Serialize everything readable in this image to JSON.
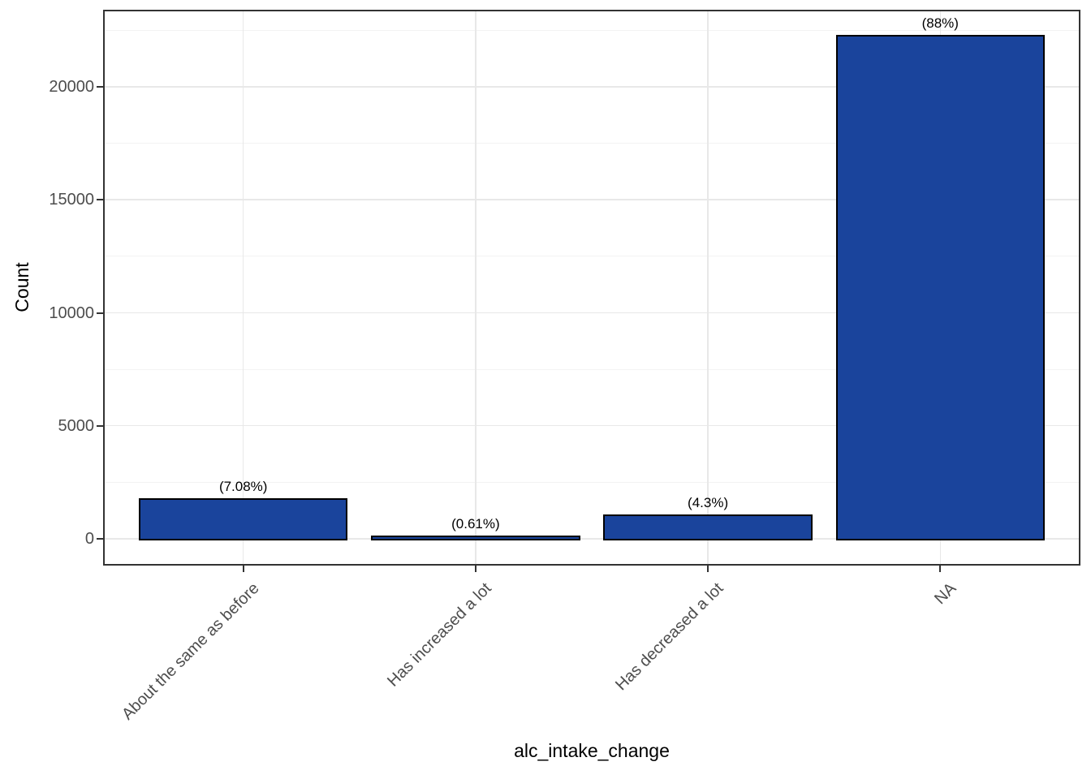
{
  "chart_data": {
    "type": "bar",
    "title": "",
    "xlabel": "alc_intake_change",
    "ylabel": "Count",
    "categories": [
      "About the same as before",
      "Has increased a lot",
      "Has decreased a lot",
      "NA"
    ],
    "series": [
      {
        "name": "count",
        "values": [
          1794,
          155,
          1090,
          22302
        ]
      }
    ],
    "bar_labels": [
      "(7.08%)",
      "(0.61%)",
      "(4.3%)",
      "(88%)"
    ],
    "percentages": [
      7.08,
      0.61,
      4.3,
      88
    ],
    "y_axis": {
      "major_ticks": [
        0,
        5000,
        10000,
        15000,
        20000
      ],
      "minor_gridlines": [
        2500,
        7500,
        12500,
        17500,
        22500
      ],
      "range": [
        0,
        23340
      ]
    },
    "x_axis": {
      "tick_label_rotation_deg": -45
    },
    "grid": {
      "horizontal_major": true,
      "horizontal_minor": true,
      "vertical_major_at_categories": true,
      "vertical_minor": false
    },
    "legend": false,
    "colors": {
      "bar_fill": "#1A449C",
      "bar_stroke": "#000000",
      "grid_major": "#E8E8E8",
      "grid_minor": "#F3F3F3",
      "panel_border": "#333333",
      "tick_mark": "#333333",
      "tick_label": "#4D4D4D",
      "axis_title": "#000000",
      "background": "#FFFFFF"
    }
  }
}
